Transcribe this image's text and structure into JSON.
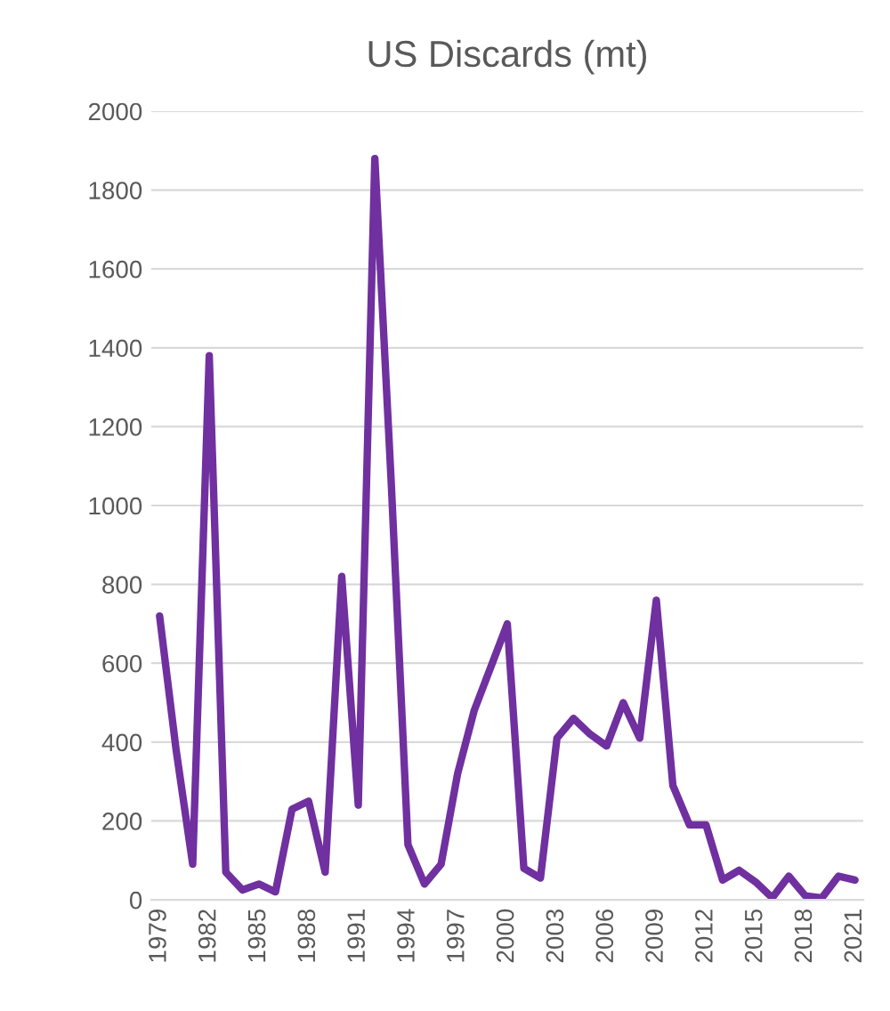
{
  "chart_data": {
    "type": "line",
    "title": "US Discards (mt)",
    "categories": [
      "1979",
      null,
      null,
      "1982",
      null,
      null,
      "1985",
      null,
      null,
      "1988",
      null,
      null,
      "1991",
      null,
      null,
      "1994",
      null,
      null,
      "1997",
      null,
      null,
      "2000",
      null,
      null,
      "2003",
      null,
      null,
      "2006",
      null,
      null,
      "2009",
      null,
      null,
      "2012",
      null,
      null,
      "2015",
      null,
      null,
      "2018",
      null,
      null,
      "2021"
    ],
    "series": [
      {
        "color": "#7030a0",
        "values": [
          720,
          380,
          90,
          1380,
          70,
          25,
          40,
          20,
          230,
          250,
          70,
          820,
          240,
          1880,
          1050,
          140,
          40,
          90,
          320,
          480,
          590,
          700,
          80,
          55,
          410,
          460,
          420,
          390,
          500,
          410,
          760,
          290,
          190,
          190,
          50,
          75,
          45,
          5,
          60,
          10,
          5,
          60,
          50
        ]
      }
    ],
    "ylim": [
      0,
      2000
    ],
    "yticks": [
      0,
      200,
      400,
      600,
      800,
      1000,
      1200,
      1400,
      1600,
      1800,
      2000
    ],
    "grid": "y"
  }
}
